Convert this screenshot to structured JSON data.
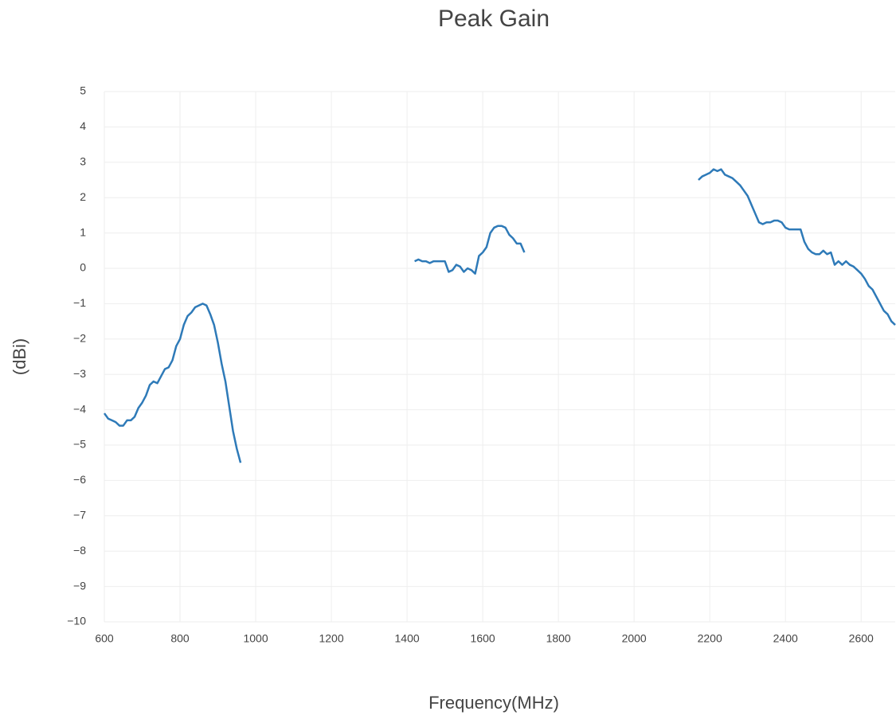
{
  "chart_data": {
    "type": "line",
    "title": "Peak Gain",
    "x_label": "Frequency(MHz)",
    "y_label": "(dBi)",
    "x": [
      600,
      610,
      620,
      630,
      640,
      650,
      660,
      670,
      680,
      690,
      700,
      710,
      720,
      730,
      740,
      750,
      760,
      770,
      780,
      790,
      800,
      810,
      820,
      830,
      840,
      850,
      860,
      870,
      880,
      890,
      900,
      910,
      920,
      930,
      940,
      950,
      960,
      970,
      1420,
      1430,
      1440,
      1450,
      1460,
      1470,
      1480,
      1490,
      1500,
      1510,
      1520,
      1530,
      1540,
      1550,
      1560,
      1570,
      1580,
      1590,
      1600,
      1610,
      1620,
      1630,
      1640,
      1650,
      1660,
      1670,
      1680,
      1690,
      1700,
      1710,
      1720,
      2170,
      2180,
      2190,
      2200,
      2210,
      2220,
      2230,
      2240,
      2250,
      2260,
      2270,
      2280,
      2290,
      2300,
      2310,
      2320,
      2330,
      2340,
      2350,
      2360,
      2370,
      2380,
      2390,
      2400,
      2410,
      2420,
      2430,
      2440,
      2450,
      2460,
      2470,
      2480,
      2490,
      2500,
      2510,
      2520,
      2530,
      2540,
      2550,
      2560,
      2570,
      2580,
      2590,
      2600,
      2610,
      2620,
      2630,
      2640,
      2650,
      2660,
      2670,
      2680,
      2690
    ],
    "series": [
      {
        "name": "Peak Gain",
        "color": "#2e7ab8",
        "values": [
          -4.1,
          -4.25,
          -4.3,
          -4.35,
          -4.45,
          -4.45,
          -4.3,
          -4.3,
          -4.2,
          -3.95,
          -3.8,
          -3.6,
          -3.3,
          -3.2,
          -3.25,
          -3.05,
          -2.85,
          -2.8,
          -2.6,
          -2.2,
          -2.0,
          -1.6,
          -1.35,
          -1.25,
          -1.1,
          -1.05,
          -1.0,
          -1.05,
          -1.3,
          -1.6,
          -2.1,
          -2.7,
          -3.2,
          -3.9,
          -4.6,
          -5.1,
          -5.5,
          null,
          0.2,
          0.25,
          0.2,
          0.2,
          0.15,
          0.2,
          0.2,
          0.2,
          0.2,
          -0.1,
          -0.05,
          0.1,
          0.05,
          -0.1,
          0.0,
          -0.05,
          -0.15,
          0.35,
          0.45,
          0.6,
          1.0,
          1.15,
          1.2,
          1.2,
          1.15,
          0.95,
          0.85,
          0.7,
          0.7,
          0.45,
          null,
          2.5,
          2.6,
          2.65,
          2.7,
          2.8,
          2.75,
          2.8,
          2.65,
          2.6,
          2.55,
          2.45,
          2.35,
          2.2,
          2.05,
          1.8,
          1.55,
          1.3,
          1.25,
          1.3,
          1.3,
          1.35,
          1.35,
          1.3,
          1.15,
          1.1,
          1.1,
          1.1,
          1.1,
          0.75,
          0.55,
          0.45,
          0.4,
          0.4,
          0.5,
          0.4,
          0.45,
          0.1,
          0.2,
          0.1,
          0.2,
          0.1,
          0.05,
          -0.05,
          -0.15,
          -0.3,
          -0.5,
          -0.6,
          -0.8,
          -1.0,
          -1.2,
          -1.3,
          -1.5,
          -1.6
        ]
      }
    ],
    "xlim": [
      600,
      2690
    ],
    "ylim": [
      -10,
      5
    ],
    "xticks": [
      600,
      800,
      1000,
      1200,
      1400,
      1600,
      1800,
      2000,
      2200,
      2400,
      2600
    ],
    "yticks": [
      {
        "value": -10,
        "label": "−10"
      },
      {
        "value": -9,
        "label": "−9"
      },
      {
        "value": -8,
        "label": "−8"
      },
      {
        "value": -7,
        "label": "−7"
      },
      {
        "value": -6,
        "label": "−6"
      },
      {
        "value": -5,
        "label": "−5"
      },
      {
        "value": -4,
        "label": "−4"
      },
      {
        "value": -3,
        "label": "−3"
      },
      {
        "value": -2,
        "label": "−2"
      },
      {
        "value": -1,
        "label": "−1"
      },
      0,
      1,
      2,
      3,
      4,
      5
    ],
    "grid": true
  }
}
